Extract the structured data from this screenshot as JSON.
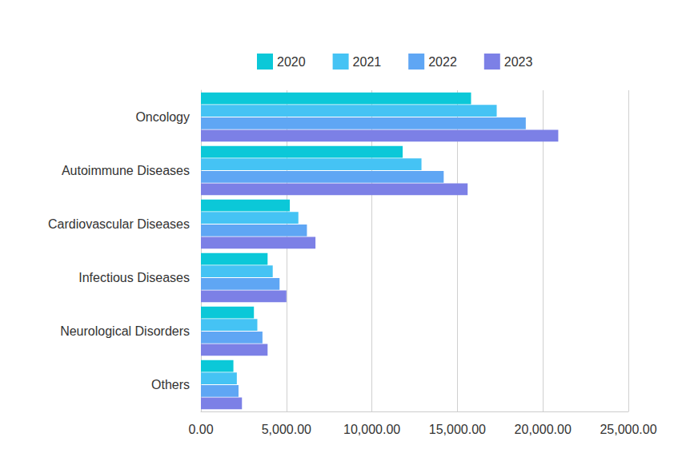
{
  "chart_data": {
    "type": "bar",
    "orientation": "horizontal",
    "categories": [
      "Oncology",
      "Autoimmune Diseases",
      "Cardiovascular Diseases",
      "Infectious Diseases",
      "Neurological Disorders",
      "Others"
    ],
    "series": [
      {
        "name": "2020",
        "color": "#0bc8d8",
        "values": [
          15800,
          11800,
          5200,
          3900,
          3100,
          1900
        ]
      },
      {
        "name": "2021",
        "color": "#45c3f4",
        "values": [
          17300,
          12900,
          5700,
          4200,
          3300,
          2100
        ]
      },
      {
        "name": "2022",
        "color": "#5fa6f4",
        "values": [
          19000,
          14200,
          6200,
          4600,
          3600,
          2200
        ]
      },
      {
        "name": "2023",
        "color": "#7c80e6",
        "values": [
          20900,
          15600,
          6700,
          5000,
          3900,
          2400
        ]
      }
    ],
    "xlim": [
      0,
      25000
    ],
    "xticks": [
      {
        "value": 0,
        "label": "0.00"
      },
      {
        "value": 5000,
        "label": "5,000.00"
      },
      {
        "value": 10000,
        "label": "10,000.00"
      },
      {
        "value": 15000,
        "label": "15,000.00"
      },
      {
        "value": 20000,
        "label": "20,000.00"
      },
      {
        "value": 25000,
        "label": "25,000.00"
      }
    ],
    "grid": true,
    "legend": "top"
  }
}
